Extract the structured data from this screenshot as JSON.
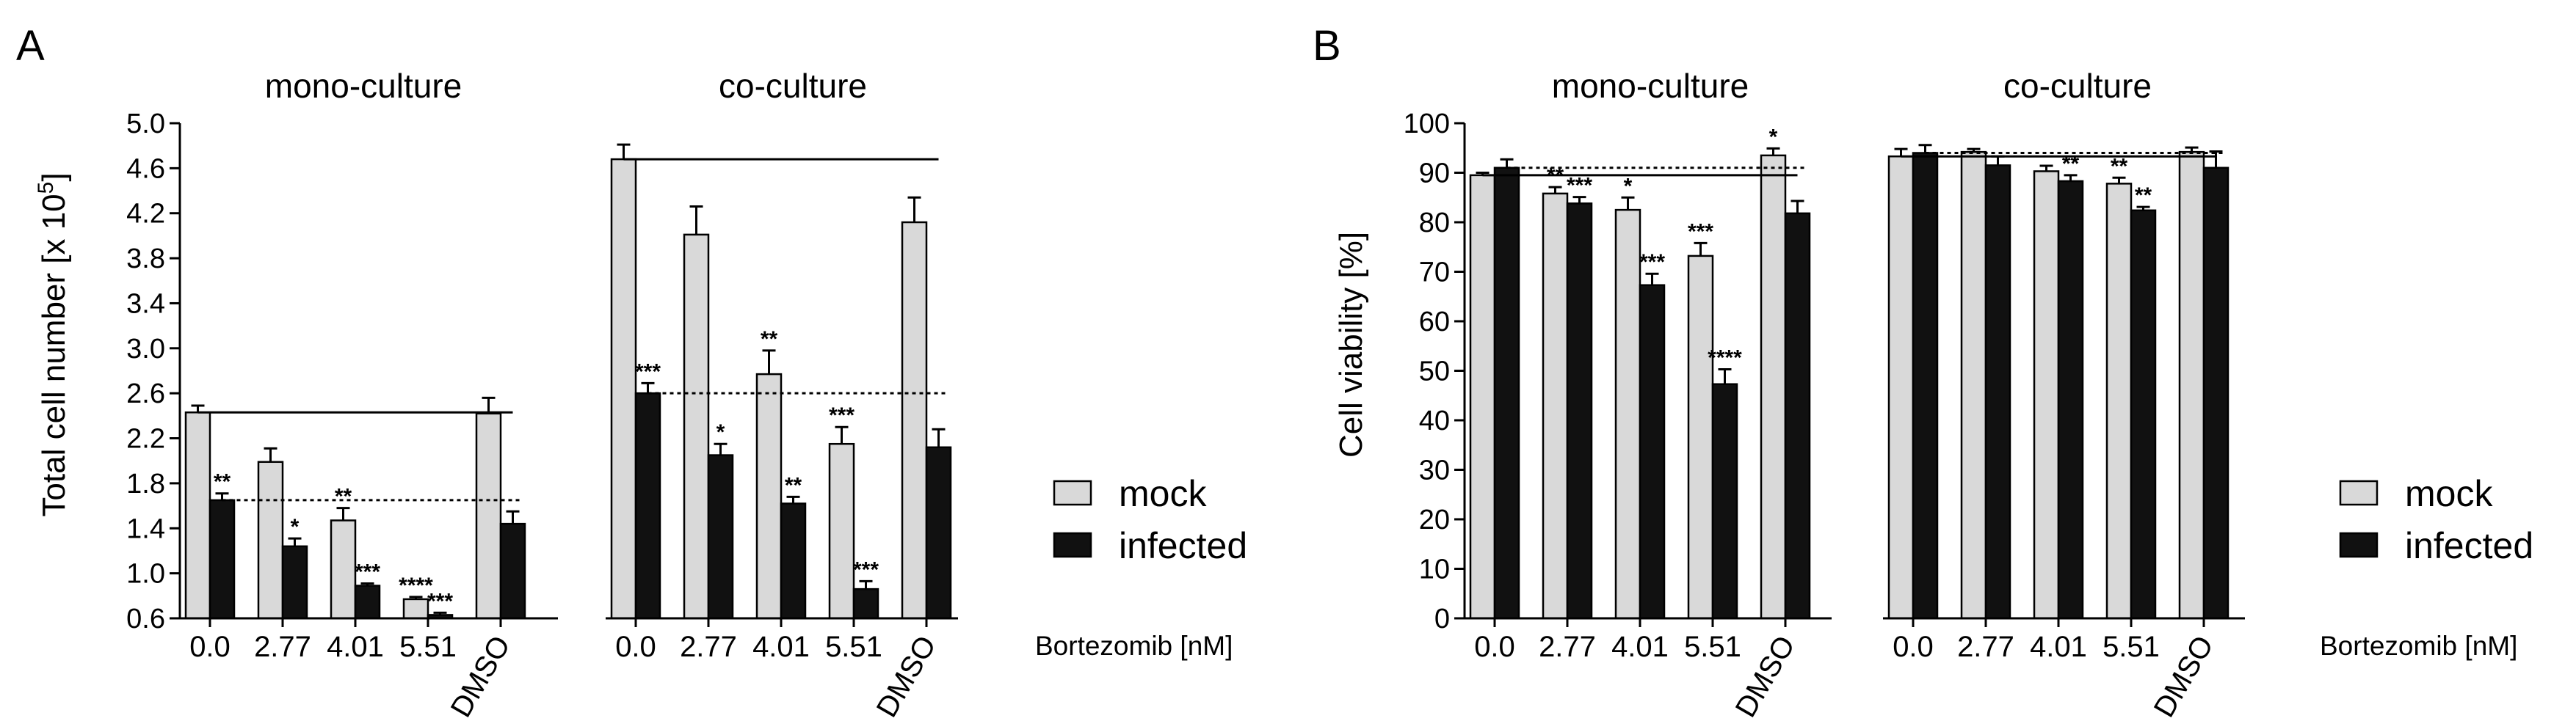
{
  "figure": {
    "colors": {
      "mock": "#d9d9d9",
      "infected": "#111111",
      "stroke": "#000000"
    },
    "x_axis_caption": "Bortezomib [nM]",
    "categories": [
      "0.0",
      "2.77",
      "4.01",
      "5.51",
      "DMSO"
    ],
    "legend": {
      "mock": "mock",
      "infected": "infected"
    }
  },
  "chart_data": [
    {
      "panel": "A",
      "type": "bar",
      "ylabel_main": "Total cell number [x 10",
      "ylabel_exp": "5",
      "ylabel_close": "]",
      "ylim": [
        0.6,
        5.0
      ],
      "yticks": [
        "0.6",
        "1.0",
        "1.4",
        "1.8",
        "2.2",
        "2.6",
        "3.0",
        "3.4",
        "3.8",
        "4.2",
        "4.6",
        "5.0"
      ],
      "groups": [
        {
          "title": "mono-culture",
          "categories": [
            "0.0",
            "2.77",
            "4.01",
            "5.51",
            "DMSO"
          ],
          "series": [
            {
              "name": "mock",
              "values": [
                2.43,
                1.99,
                1.47,
                0.77,
                2.42
              ],
              "errors": [
                0.06,
                0.12,
                0.11,
                0.02,
                0.14
              ],
              "stars": [
                "",
                "",
                "**",
                "****",
                ""
              ]
            },
            {
              "name": "infected",
              "values": [
                1.65,
                1.24,
                0.89,
                0.63,
                1.44
              ],
              "errors": [
                0.06,
                0.07,
                0.02,
                0.02,
                0.11
              ],
              "stars": [
                "**",
                "*",
                "***",
                "***",
                ""
              ]
            }
          ],
          "ref_solid": 2.43,
          "ref_dotted": 1.65
        },
        {
          "title": "co-culture",
          "categories": [
            "0.0",
            "2.77",
            "4.01",
            "5.51",
            "DMSO"
          ],
          "series": [
            {
              "name": "mock",
              "values": [
                4.68,
                4.01,
                2.77,
                2.15,
                4.12
              ],
              "errors": [
                0.13,
                0.25,
                0.21,
                0.15,
                0.22
              ],
              "stars": [
                "",
                "",
                "**",
                "***",
                ""
              ]
            },
            {
              "name": "infected",
              "values": [
                2.6,
                2.05,
                1.62,
                0.86,
                2.12
              ],
              "errors": [
                0.09,
                0.1,
                0.06,
                0.07,
                0.16
              ],
              "stars": [
                "***",
                "*",
                "**",
                "***",
                ""
              ]
            }
          ],
          "ref_solid": 4.68,
          "ref_dotted": 2.6
        }
      ]
    },
    {
      "panel": "B",
      "type": "bar",
      "ylabel_main": "Cell viability [%]",
      "ylim": [
        0,
        100
      ],
      "yticks": [
        "0",
        "10",
        "20",
        "30",
        "40",
        "50",
        "60",
        "70",
        "80",
        "90",
        "100"
      ],
      "groups": [
        {
          "title": "mono-culture",
          "categories": [
            "0.0",
            "2.77",
            "4.01",
            "5.51",
            "DMSO"
          ],
          "series": [
            {
              "name": "mock",
              "values": [
                89.5,
                85.8,
                82.5,
                73.2,
                93.5
              ],
              "errors": [
                0.5,
                1.3,
                2.5,
                2.6,
                1.4
              ],
              "stars": [
                "",
                "**",
                "*",
                "***",
                "*"
              ]
            },
            {
              "name": "infected",
              "values": [
                91.0,
                83.8,
                67.3,
                47.3,
                81.8
              ],
              "errors": [
                1.7,
                1.3,
                2.3,
                3.0,
                2.5
              ],
              "stars": [
                "",
                "***",
                "***",
                "****",
                ""
              ]
            }
          ],
          "ref_solid": 89.5,
          "ref_dotted": 91.0
        },
        {
          "title": "co-culture",
          "categories": [
            "0.0",
            "2.77",
            "4.01",
            "5.51",
            "DMSO"
          ],
          "series": [
            {
              "name": "mock",
              "values": [
                93.3,
                94.2,
                90.3,
                87.8,
                94.2
              ],
              "errors": [
                1.5,
                0.6,
                1.1,
                1.2,
                0.9
              ],
              "stars": [
                "",
                "",
                "",
                "**",
                ""
              ]
            },
            {
              "name": "infected",
              "values": [
                94.0,
                91.5,
                88.3,
                82.4,
                91.0
              ],
              "errors": [
                1.6,
                1.8,
                1.2,
                0.7,
                3.3
              ],
              "stars": [
                "",
                "",
                "**",
                "**",
                ""
              ]
            }
          ],
          "ref_solid": 93.3,
          "ref_dotted": 94.0
        }
      ]
    }
  ]
}
